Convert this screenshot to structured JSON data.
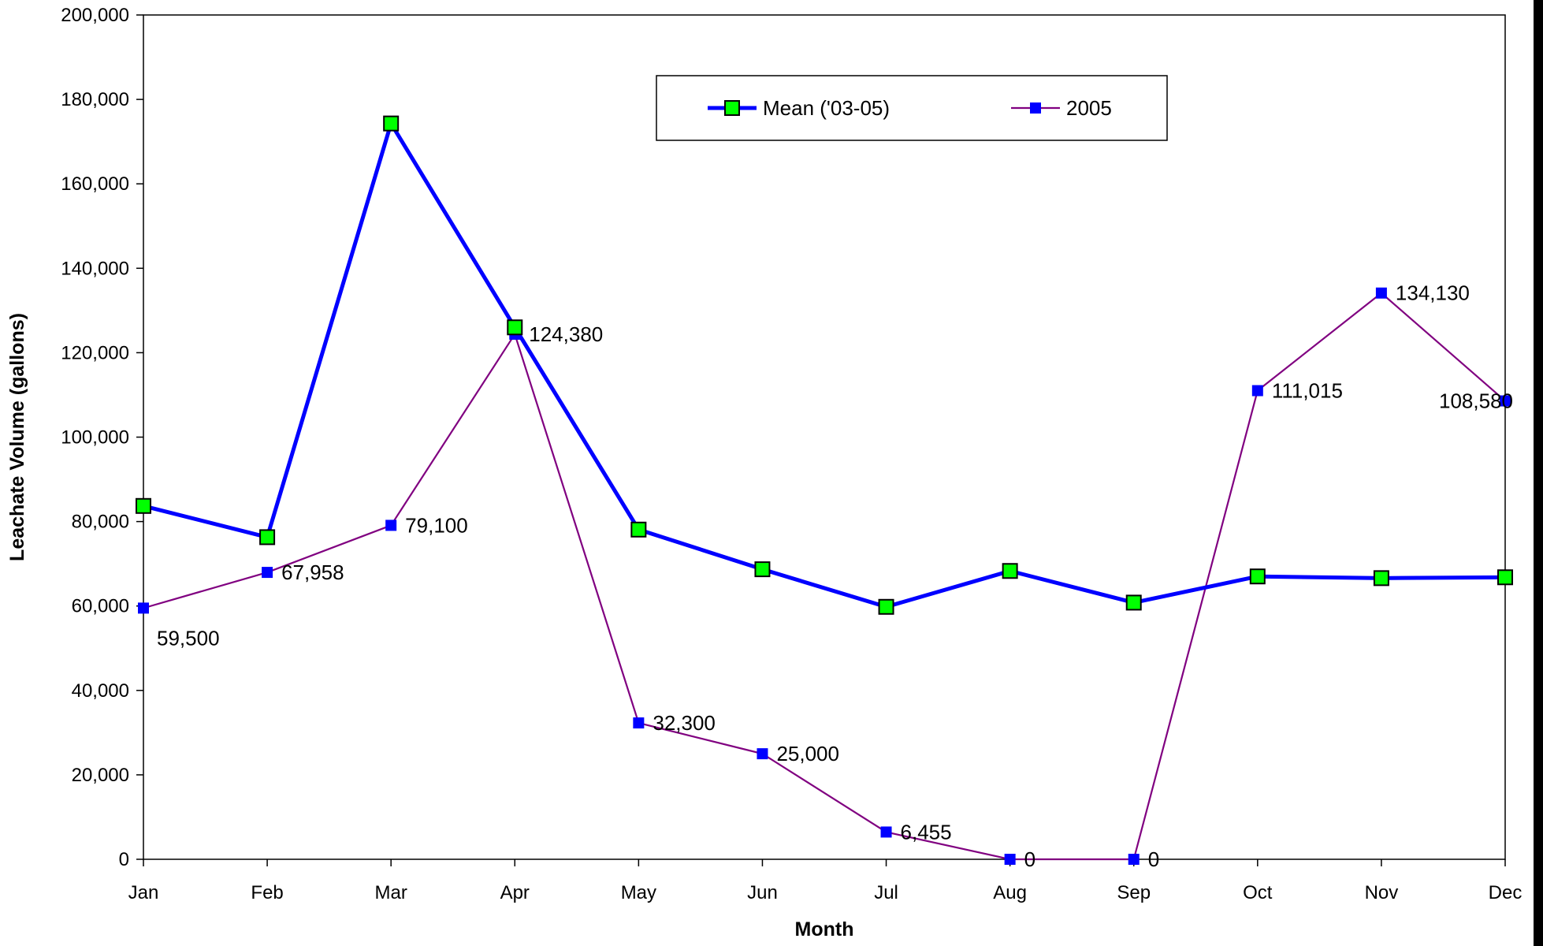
{
  "chart_data": {
    "type": "line",
    "title": "",
    "xlabel": "Month",
    "ylabel": "Leachate Volume (gallons)",
    "ylim": [
      0,
      200000
    ],
    "yticks": [
      0,
      20000,
      40000,
      60000,
      80000,
      100000,
      120000,
      140000,
      160000,
      180000,
      200000
    ],
    "ytick_labels": [
      "0",
      "20,000",
      "40,000",
      "60,000",
      "80,000",
      "100,000",
      "120,000",
      "140,000",
      "160,000",
      "180,000",
      "200,000"
    ],
    "categories": [
      "Jan",
      "Feb",
      "Mar",
      "Apr",
      "May",
      "Jun",
      "Jul",
      "Aug",
      "Sep",
      "Oct",
      "Nov",
      "Dec"
    ],
    "grid": false,
    "legend_position": "top-center",
    "series": [
      {
        "name": "Mean ('03-05)",
        "color": "#0000ff",
        "marker_color": "#00ff00",
        "values": [
          83700,
          76300,
          174300,
          126000,
          78100,
          68700,
          59800,
          68300,
          60800,
          67000,
          66600,
          66800
        ],
        "data_labels": []
      },
      {
        "name": "2005",
        "color": "#800080",
        "marker_color": "#0000ff",
        "values": [
          59500,
          67958,
          79100,
          124380,
          32300,
          25000,
          6455,
          0,
          0,
          111015,
          134130,
          108580
        ],
        "data_labels": [
          "59,500",
          "67,958",
          "79,100",
          "124,380",
          "32,300",
          "25,000",
          "6,455",
          "0",
          "0",
          "111,015",
          "134,130",
          "108,580"
        ]
      }
    ]
  }
}
